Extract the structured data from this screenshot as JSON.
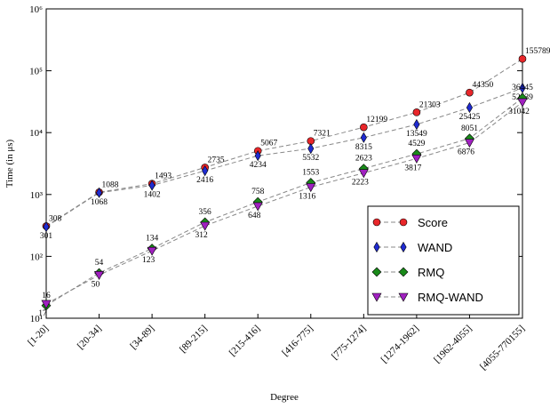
{
  "chart_data": {
    "type": "line",
    "y_label": "Time (in μs)",
    "x_label": "Degree",
    "log_y": true,
    "legend": "lower right",
    "linestyle": "dashed",
    "categories": [
      "[1-20]",
      "[20-34]",
      "[34-89]",
      "[89-215]",
      "[215-416]",
      "[416-775]",
      "[775-1274]",
      "[1274-1962]",
      "[1962-4055]",
      "[4055-770155]"
    ],
    "series": [
      {
        "name": "Score",
        "color": "#e8262a",
        "marker": "circle",
        "values": [
          308,
          1088,
          1493,
          2735,
          5067,
          7321,
          12199,
          21303,
          44350,
          155789
        ]
      },
      {
        "name": "WAND",
        "color": "#1f2bd1",
        "marker": "thin_diamond",
        "values": [
          301,
          1068,
          1402,
          2416,
          4234,
          5532,
          8315,
          13549,
          25425,
          52539
        ]
      },
      {
        "name": "RMQ",
        "color": "#1a8a1a",
        "marker": "diamond",
        "values": [
          16,
          54,
          134,
          356,
          758,
          1553,
          2623,
          4529,
          8051,
          36445
        ]
      },
      {
        "name": "RMQ-WAND",
        "color": "#a020c0",
        "marker": "triangle_down",
        "values": [
          17,
          50,
          123,
          312,
          648,
          1316,
          2223,
          3817,
          6876,
          31042
        ]
      }
    ],
    "ylim": [
      10,
      1000000
    ],
    "yticks": [
      {
        "value": 10,
        "label": "10¹"
      },
      {
        "value": 100,
        "label": "10²"
      },
      {
        "value": 1000,
        "label": "10³"
      },
      {
        "value": 10000,
        "label": "10⁴"
      },
      {
        "value": 100000,
        "label": "10⁵"
      },
      {
        "value": 1000000,
        "label": "10⁶"
      }
    ]
  }
}
